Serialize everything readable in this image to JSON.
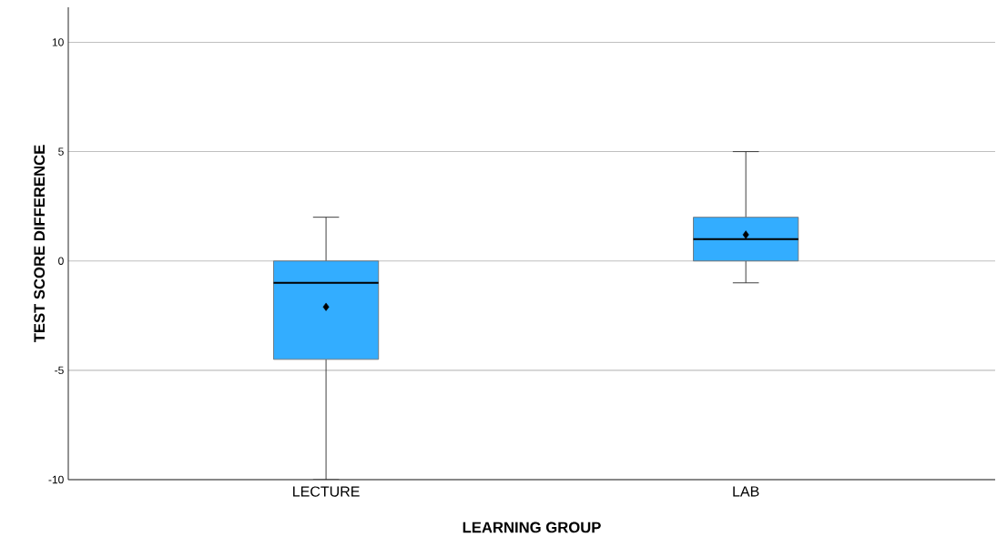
{
  "chart_data": {
    "type": "box",
    "xlabel": "LEARNING GROUP",
    "ylabel": "TEST SCORE DIFFERENCE",
    "categories": [
      "LECTURE",
      "LAB"
    ],
    "color": "#33adff",
    "boxes": [
      {
        "low": -10,
        "q1": -4.5,
        "median": -1,
        "q3": 0,
        "high": 2,
        "mean": -2.1
      },
      {
        "low": -1,
        "q1": 0,
        "median": 1,
        "q3": 2,
        "high": 5,
        "mean": 1.2
      }
    ],
    "ylim": [
      -10,
      11.6
    ],
    "yticks": [
      -10,
      -5,
      0,
      5,
      10
    ],
    "grid": "y",
    "marker": "diamond"
  }
}
